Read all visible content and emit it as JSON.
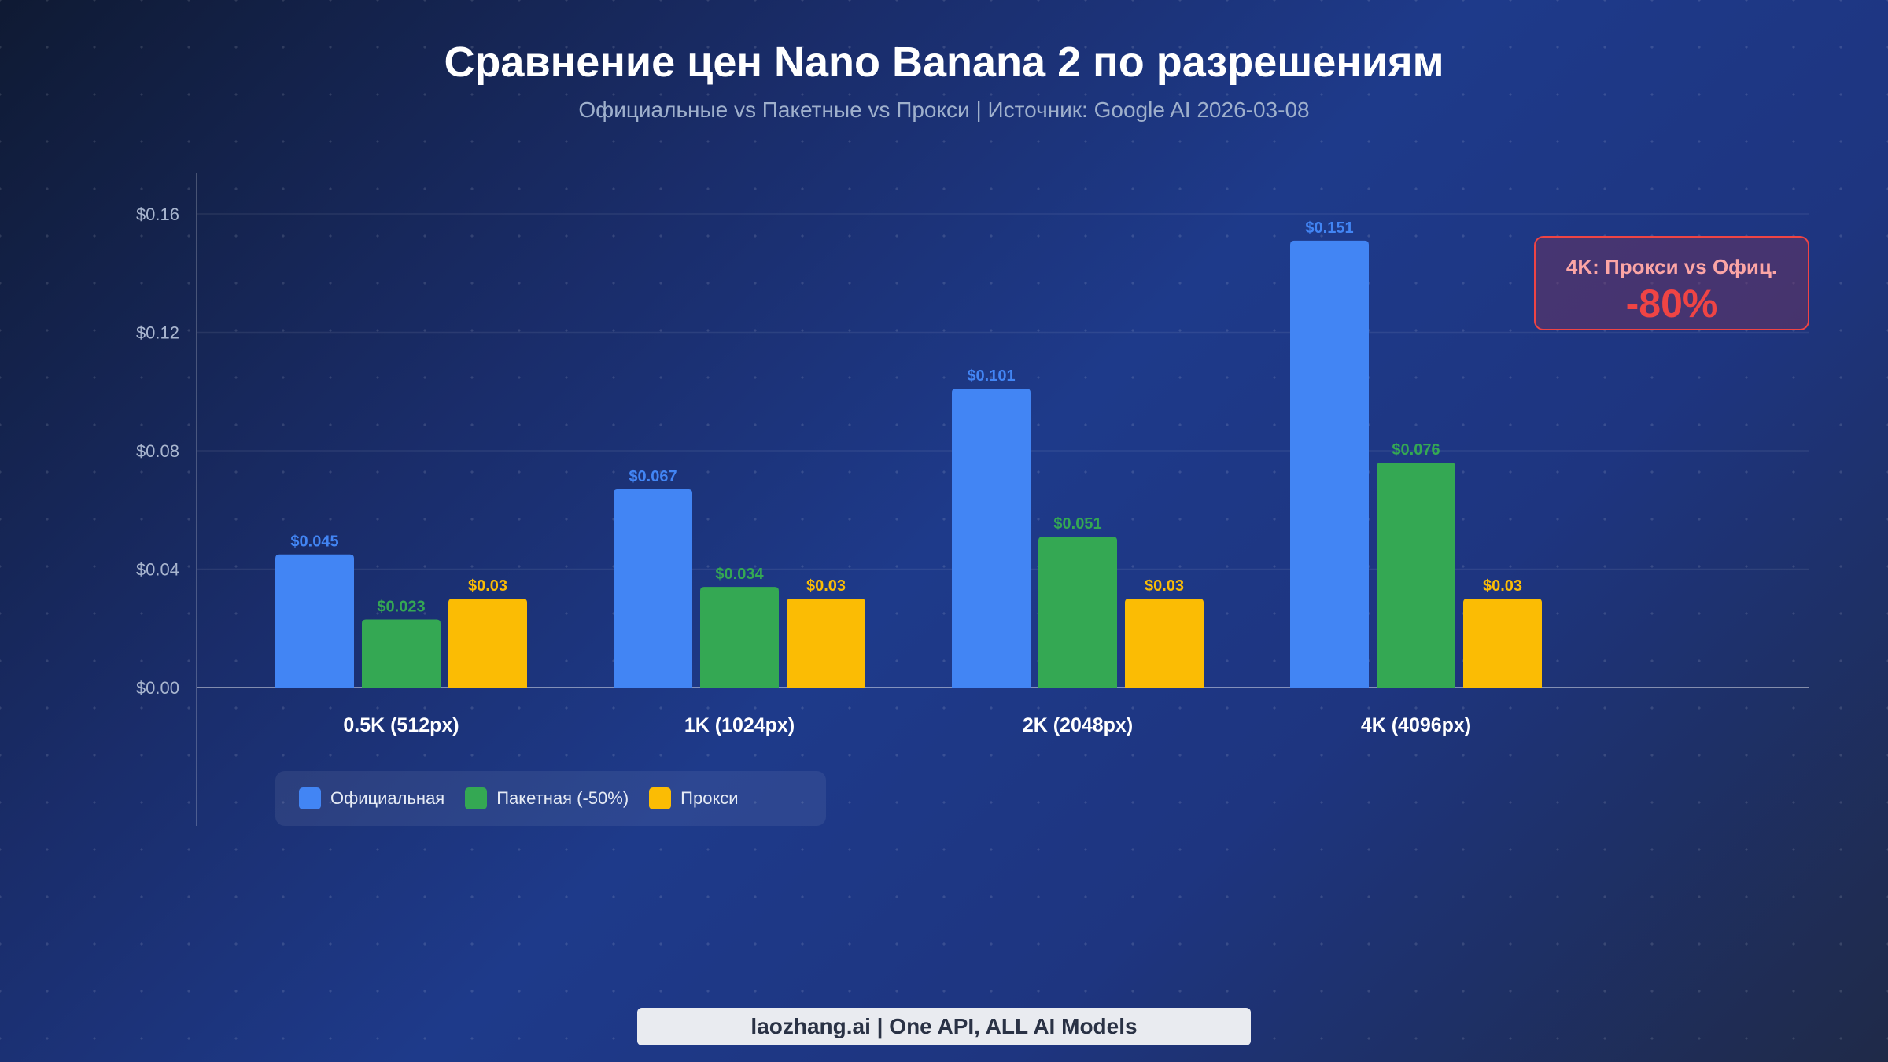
{
  "chart_data": {
    "type": "bar",
    "title": "Сравнение цен Nano Banana 2 по разрешениям",
    "subtitle": "Официальные vs Пакетные vs Прокси | Источник: Google AI 2026-03-08",
    "categories": [
      "0.5K (512px)",
      "1K (1024px)",
      "2K (2048px)",
      "4K (4096px)"
    ],
    "series": [
      {
        "name": "Официальная",
        "color": "#4285f4",
        "values": [
          0.045,
          0.067,
          0.101,
          0.151
        ],
        "labels": [
          "$0.045",
          "$0.067",
          "$0.101",
          "$0.151"
        ]
      },
      {
        "name": "Пакетная (-50%)",
        "color": "#34a853",
        "values": [
          0.023,
          0.034,
          0.051,
          0.076
        ],
        "labels": [
          "$0.023",
          "$0.034",
          "$0.051",
          "$0.076"
        ]
      },
      {
        "name": "Прокси",
        "color": "#fbbc04",
        "values": [
          0.03,
          0.03,
          0.03,
          0.03
        ],
        "labels": [
          "$0.03",
          "$0.03",
          "$0.03",
          "$0.03"
        ]
      }
    ],
    "yticks": [
      "$0.00",
      "$0.04",
      "$0.08",
      "$0.12",
      "$0.16"
    ],
    "ytick_values": [
      0,
      0.04,
      0.08,
      0.12,
      0.16
    ],
    "ylim": [
      0,
      0.175
    ],
    "grid": true,
    "legend": "bottom-left"
  },
  "callout": {
    "title": "4K: Прокси vs Офиц.",
    "value": "-80%"
  },
  "footer": "laozhang.ai | One API, ALL AI Models"
}
